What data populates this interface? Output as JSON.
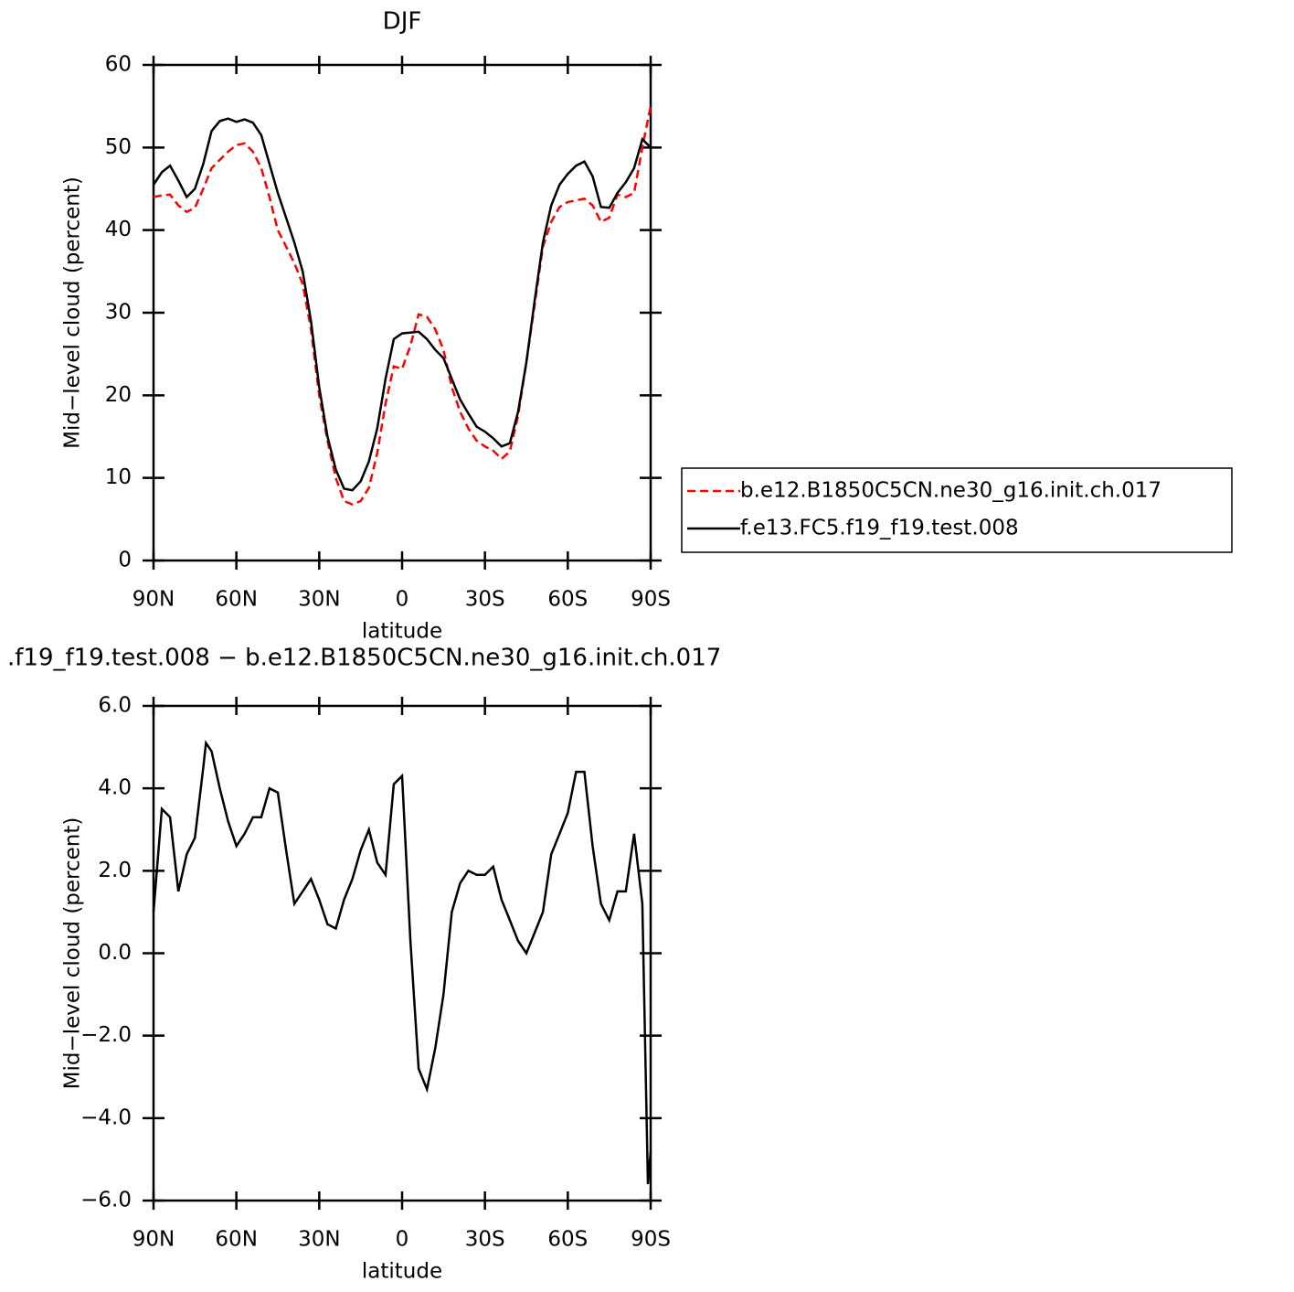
{
  "chart_data": [
    {
      "type": "line",
      "title": "DJF",
      "xlabel": "latitude",
      "ylabel": "Mid−level cloud (percent)",
      "xlim": [
        90,
        -90
      ],
      "xticks": [
        {
          "value": 90,
          "label": "90N"
        },
        {
          "value": 60,
          "label": "60N"
        },
        {
          "value": 30,
          "label": "30N"
        },
        0,
        {
          "value": -30,
          "label": "30S"
        },
        {
          "value": -60,
          "label": "60S"
        },
        {
          "value": -90,
          "label": "90S"
        }
      ],
      "ylim": [
        0,
        60
      ],
      "yticks": [
        0,
        10,
        20,
        30,
        40,
        50,
        60
      ],
      "x": [
        90,
        87,
        84,
        81,
        78,
        75,
        72,
        69,
        66,
        63,
        60,
        57,
        54,
        51,
        48,
        45,
        42,
        39,
        36,
        33,
        30,
        27,
        24,
        21,
        18,
        15,
        12,
        9,
        6,
        3,
        0,
        -3,
        -6,
        -9,
        -12,
        -15,
        -18,
        -21,
        -24,
        -27,
        -30,
        -33,
        -36,
        -39,
        -42,
        -45,
        -48,
        -51,
        -54,
        -57,
        -60,
        -63,
        -66,
        -69,
        -72,
        -75,
        -78,
        -81,
        -84,
        -87,
        -90
      ],
      "series": [
        {
          "name": "b.e12.B1850C5CN.ne30_g16.init.ch.017",
          "color": "#ff0000",
          "line_style": "dashed",
          "values": [
            44,
            44.2,
            44.3,
            43,
            42.2,
            42.7,
            45,
            47.5,
            48.5,
            49.5,
            50.3,
            50.5,
            49.5,
            47.5,
            44,
            40,
            38,
            36,
            33.5,
            28,
            20,
            14.5,
            10,
            7.2,
            6.8,
            7.2,
            8.8,
            13,
            19,
            23.5,
            23.2,
            26,
            29.8,
            29.5,
            28,
            25.5,
            21,
            18,
            16,
            14.5,
            13.8,
            13.3,
            12.3,
            13.2,
            17.5,
            24,
            31,
            38,
            41,
            42.8,
            43.4,
            43.6,
            43.8,
            43,
            41,
            41.5,
            44.3,
            44,
            44.5,
            50,
            55
          ]
        },
        {
          "name": "f.e13.FC5.f19_f19.test.008",
          "color": "#000000",
          "line_style": "solid",
          "values": [
            45.5,
            47,
            47.8,
            46,
            44,
            45,
            48,
            52,
            53.2,
            53.5,
            53.1,
            53.4,
            53,
            51.5,
            48,
            44.5,
            41.5,
            38.5,
            35,
            29,
            21,
            15,
            11,
            8.7,
            8.5,
            9.6,
            12,
            16,
            22,
            26.8,
            27.5,
            27.6,
            27.7,
            26.8,
            25.5,
            24.5,
            22,
            19.5,
            17.8,
            16.2,
            15.6,
            14.8,
            13.8,
            14.2,
            18,
            24,
            31.5,
            38.5,
            43,
            45.5,
            46.8,
            47.8,
            48.3,
            46.5,
            42.8,
            42.7,
            44.5,
            45.8,
            47.5,
            51,
            50
          ]
        }
      ]
    },
    {
      "type": "line",
      "title": ".f19_f19.test.008 − b.e12.B1850C5CN.ne30_g16.init.ch.017",
      "xlabel": "latitude",
      "ylabel": "Mid−level cloud (percent)",
      "xlim": [
        90,
        -90
      ],
      "xticks": [
        {
          "value": 90,
          "label": "90N"
        },
        {
          "value": 60,
          "label": "60N"
        },
        {
          "value": 30,
          "label": "30N"
        },
        0,
        {
          "value": -30,
          "label": "30S"
        },
        {
          "value": -60,
          "label": "60S"
        },
        {
          "value": -90,
          "label": "90S"
        }
      ],
      "ylim": [
        -6,
        6
      ],
      "yticks": [
        {
          "value": -6,
          "label": "−6.0"
        },
        {
          "value": -4,
          "label": "−4.0"
        },
        {
          "value": -2,
          "label": "−2.0"
        },
        {
          "value": 0,
          "label": "0.0"
        },
        {
          "value": 2,
          "label": "2.0"
        },
        {
          "value": 4,
          "label": "4.0"
        },
        {
          "value": 6,
          "label": "6.0"
        }
      ],
      "color": "#000000",
      "x": [
        90,
        87,
        84,
        81,
        78,
        75,
        72,
        71,
        69,
        66,
        63,
        60,
        57,
        54,
        51,
        48,
        45,
        42,
        39,
        36,
        33,
        30,
        27,
        24,
        21,
        18,
        15,
        12,
        9,
        6,
        3,
        0,
        -3,
        -6,
        -9,
        -12,
        -15,
        -18,
        -21,
        -24,
        -27,
        -30,
        -33,
        -36,
        -39,
        -42,
        -45,
        -48,
        -51,
        -54,
        -57,
        -60,
        -63,
        -66,
        -69,
        -72,
        -75,
        -78,
        -81,
        -84,
        -87,
        -89,
        -90
      ],
      "values": [
        1.0,
        3.5,
        3.3,
        1.5,
        2.4,
        2.8,
        4.5,
        5.1,
        4.9,
        4.0,
        3.2,
        2.6,
        2.9,
        3.3,
        3.3,
        4.0,
        3.9,
        2.5,
        1.2,
        1.5,
        1.8,
        1.3,
        0.7,
        0.6,
        1.3,
        1.8,
        2.5,
        3.0,
        2.2,
        1.9,
        4.1,
        4.3,
        0.3,
        -2.8,
        -3.3,
        -2.3,
        -1.0,
        1.0,
        1.7,
        2.0,
        1.9,
        1.9,
        2.1,
        1.3,
        0.8,
        0.3,
        0.0,
        0.5,
        1.0,
        2.4,
        2.9,
        3.4,
        4.4,
        4.4,
        2.6,
        1.2,
        0.8,
        1.5,
        1.5,
        2.9,
        1.2,
        -5.6,
        -4.8
      ]
    }
  ]
}
